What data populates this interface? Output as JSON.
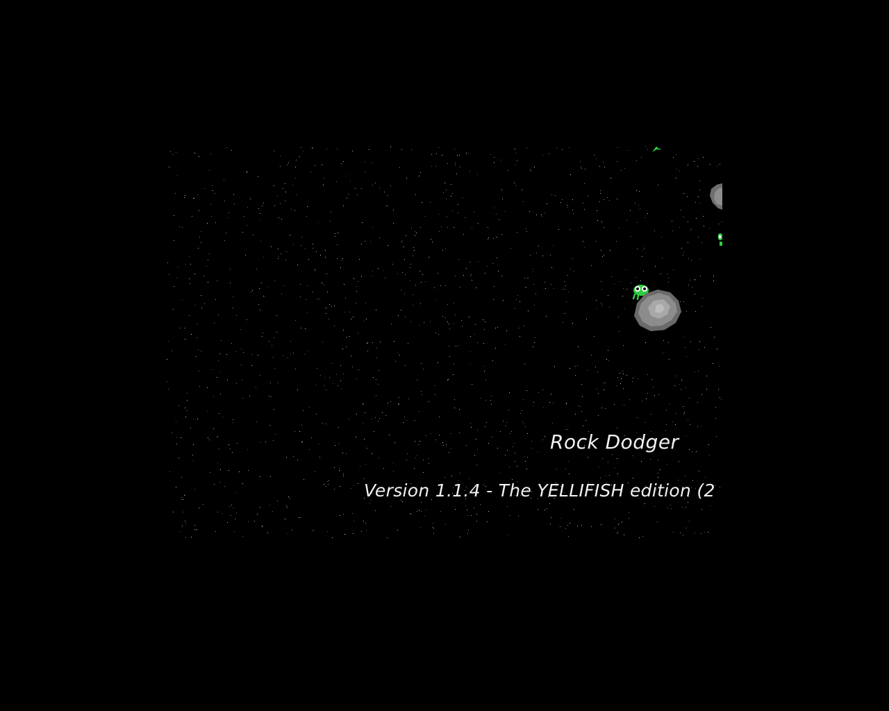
{
  "game": {
    "title": "Rock Dodger",
    "version_line": "Version 1.1.4 - The YELLIFISH edition (2",
    "colors": {
      "background": "#000000",
      "star": "#cfcfcf",
      "text": "#f2f2f2",
      "rock": "#8c8c8c",
      "ship": "#2ecc40"
    }
  }
}
